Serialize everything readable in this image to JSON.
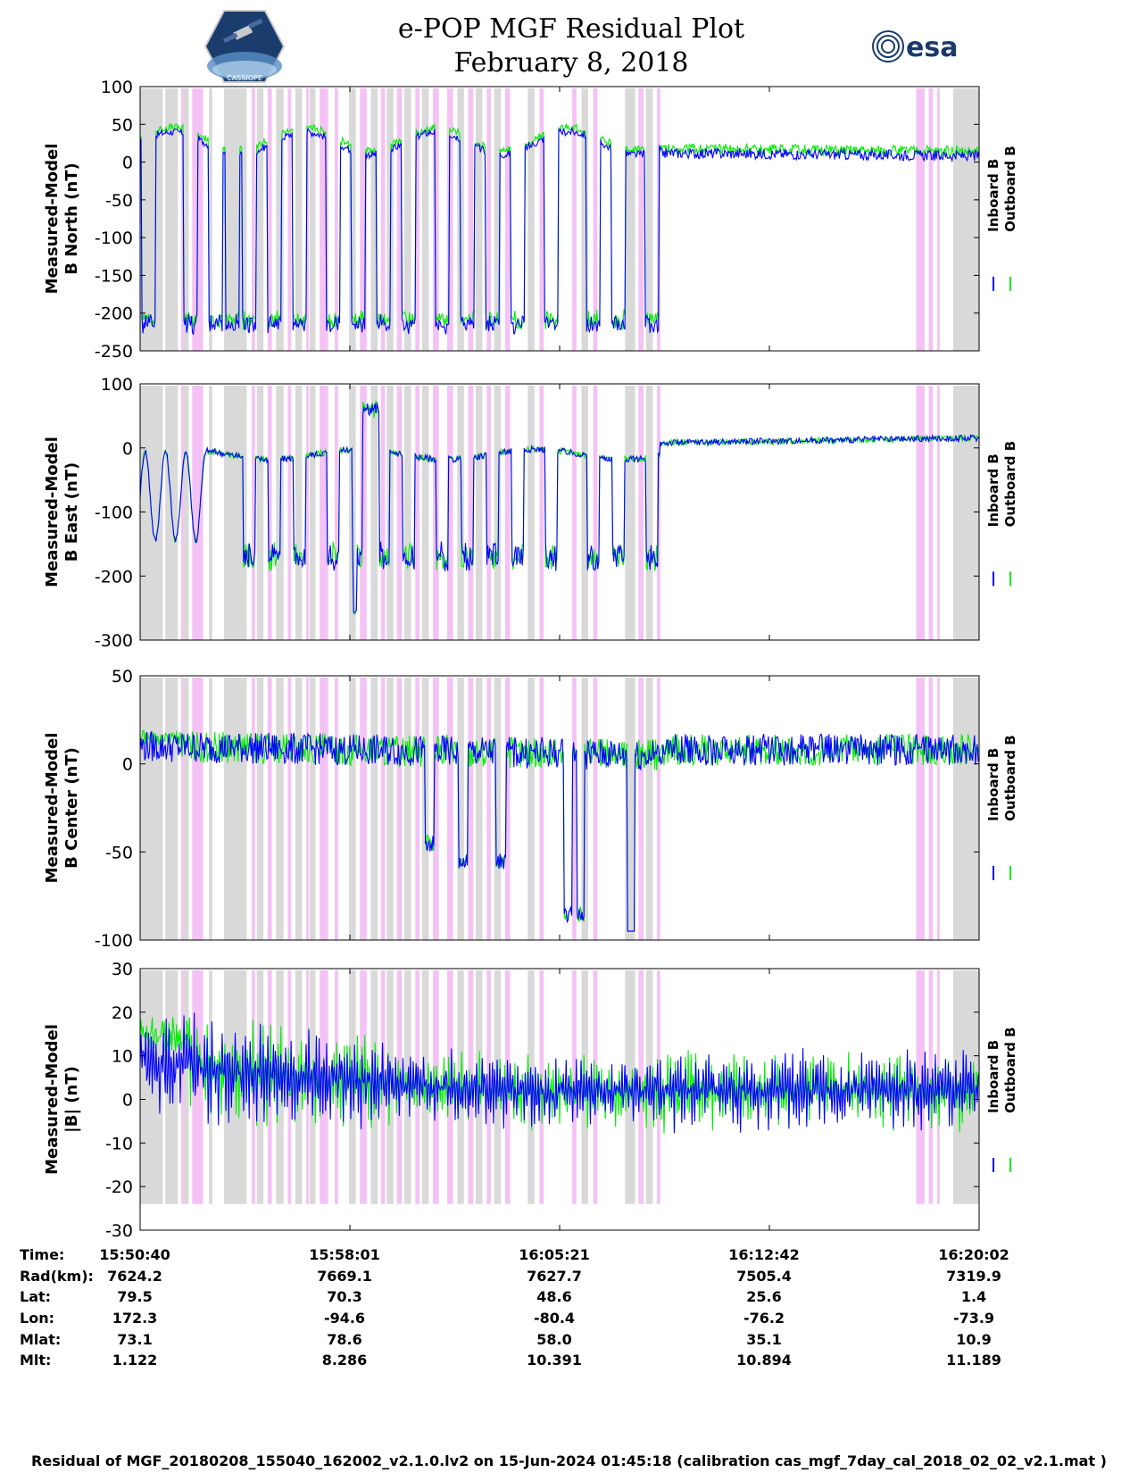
{
  "header": {
    "title": "e-POP MGF Residual Plot",
    "date": "February 8, 2018",
    "logo_left": "CASSIOPE",
    "logo_right": "esa"
  },
  "colors": {
    "inboard": "#0000ff",
    "outboard": "#00ee00",
    "band_gray": "#d9d9d9",
    "band_pink": "#f4c2f4"
  },
  "chart_data": [
    {
      "type": "line",
      "ylabel": [
        "Measured-Model",
        "B North (nT)"
      ],
      "ylim": [
        -250,
        100
      ],
      "yticks": [
        100,
        50,
        0,
        -50,
        -100,
        -150,
        -200,
        -250
      ],
      "legend": [
        "Inboard B",
        "Outboard B"
      ],
      "legend_position": "right",
      "description_series": [
        {
          "name": "Inboard B",
          "pattern": "baseline ~20 nT with deep dips to about -230 nT through 16:07, then small oscillations near 5 to 15 nT"
        },
        {
          "name": "Outboard B",
          "pattern": "follows Inboard B closely, slightly higher"
        }
      ]
    },
    {
      "type": "line",
      "ylabel": [
        "Measured-Model",
        "B East (nT)"
      ],
      "ylim": [
        -300,
        100
      ],
      "yticks": [
        100,
        0,
        -100,
        -200,
        -300
      ],
      "legend": [
        "Inboard B",
        "Outboard B"
      ],
      "legend_position": "right",
      "description_series": [
        {
          "name": "Inboard B",
          "pattern": "dips to about -150 to -200 nT, spike to about -255 nT near 15:58, peak about 70 nT near 15:59, later near 5 to 30 nT"
        },
        {
          "name": "Outboard B",
          "pattern": "overlaps Inboard B"
        }
      ]
    },
    {
      "type": "line",
      "ylabel": [
        "Measured-Model",
        "B Center (nT)"
      ],
      "ylim": [
        -100,
        50
      ],
      "yticks": [
        50,
        0,
        -50,
        -100
      ],
      "legend": [
        "Inboard B",
        "Outboard B"
      ],
      "legend_position": "right",
      "description_series": [
        {
          "name": "Inboard B",
          "pattern": "noisy near 10 nT, dips to about -60 nT around 16:01 and to about -90 / -100 nT near 16:06 and 16:07"
        },
        {
          "name": "Outboard B",
          "pattern": "overlaps Inboard B, visible near start around 15 nT"
        }
      ]
    },
    {
      "type": "line",
      "ylabel": [
        "Measured-Model",
        "|B| (nT)"
      ],
      "ylim": [
        -30,
        30
      ],
      "yticks": [
        30,
        20,
        10,
        0,
        -10,
        -20,
        -30
      ],
      "legend": [
        "Inboard B",
        "Outboard B"
      ],
      "legend_position": "right",
      "description_series": [
        {
          "name": "Inboard B",
          "pattern": "high-frequency oscillation, roughly between -15 and 25 nT, decreasing amplitude mid-way"
        },
        {
          "name": "Outboard B",
          "pattern": "near 15 nT at start, overlaps Inboard B"
        }
      ]
    }
  ],
  "x_axis": {
    "row_labels": [
      "Time:",
      "Rad(km):",
      "Lat:",
      "Lon:",
      "Mlat:",
      "Mlt:"
    ],
    "columns": [
      [
        "15:50:40",
        "7624.2",
        "79.5",
        "172.3",
        "73.1",
        "1.122"
      ],
      [
        "15:58:01",
        "7669.1",
        "70.3",
        "-94.6",
        "78.6",
        "8.286"
      ],
      [
        "16:05:21",
        "7627.7",
        "48.6",
        "-80.4",
        "58.0",
        "10.391"
      ],
      [
        "16:12:42",
        "7505.4",
        "25.6",
        "-76.2",
        "35.1",
        "10.894"
      ],
      [
        "16:20:02",
        "7319.9",
        "1.4",
        "-73.9",
        "10.9",
        "11.189"
      ]
    ]
  },
  "footer": "Residual of MGF_20180208_155040_162002_v2.1.0.lv2 on 15-Jun-2024 01:45:18 (calibration cas_mgf_7day_cal_2018_02_02_v2.1.mat )"
}
